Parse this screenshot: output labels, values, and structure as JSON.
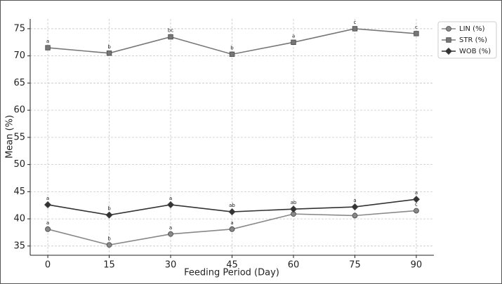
{
  "chart_data": {
    "type": "line",
    "xlabel": "Feeding Period (Day)",
    "ylabel": "Mean (%)",
    "x": [
      0,
      15,
      30,
      45,
      60,
      75,
      90
    ],
    "xlim": [
      -4.3,
      94.3
    ],
    "xticks": [
      0,
      15,
      30,
      45,
      60,
      75,
      90
    ],
    "ylim": [
      33.3,
      76.8
    ],
    "yticks": [
      35,
      40,
      45,
      50,
      55,
      60,
      65,
      70,
      75
    ],
    "grid": true,
    "legend": "upper right outside",
    "series": [
      {
        "name": "LIN (%)",
        "color": "#888888",
        "marker": "circle",
        "values": [
          38.1,
          35.2,
          37.2,
          38.1,
          40.9,
          40.6,
          41.5
        ],
        "letters": [
          "a",
          "b",
          "a",
          "a",
          null,
          null,
          "c"
        ]
      },
      {
        "name": "STR (%)",
        "color": "#777777",
        "marker": "square",
        "values": [
          71.5,
          70.5,
          73.5,
          70.3,
          72.5,
          75.0,
          74.1
        ],
        "letters": [
          "a",
          "b",
          "bc",
          "b",
          "a",
          "c",
          "c"
        ]
      },
      {
        "name": "WOB (%)",
        "color": "#333333",
        "marker": "diamond",
        "values": [
          42.6,
          40.7,
          42.6,
          41.3,
          41.8,
          42.2,
          43.6
        ],
        "letters": [
          "a",
          "b",
          "a",
          "ab",
          "ab",
          "a",
          "a"
        ]
      }
    ]
  }
}
